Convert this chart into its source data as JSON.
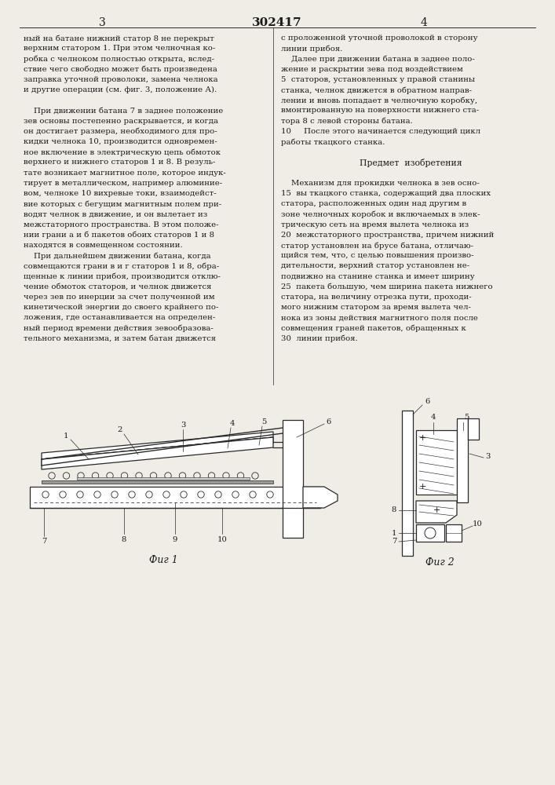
{
  "page_width": 7.07,
  "page_height": 10.0,
  "bg_color": "#f0ede6",
  "text_color": "#1a1a1a",
  "line_color": "#2a2a2a",
  "patent_number": "302417",
  "page_numbers": [
    "3",
    "4"
  ],
  "col1_text": [
    "ный на батане нижний статор 8 не перекрыт",
    "верхним статором 1. При этом челночная ко-",
    "робка с челноком полностью открыта, вслед-",
    "ствие чего свободно может быть произведена",
    "заправка уточной проволоки, замена челнока",
    "и другие операции (см. фиг. 3, положение А).",
    "",
    "    При движении батана 7 в заднее положение",
    "зев основы постепенно раскрывается, и когда",
    "он достигает размера, необходимого для про-",
    "кидки челнока 10, производится одновремен-",
    "ное включение в электрическую цепь обмоток",
    "верхнего и нижнего статоров 1 и 8. В резуль-",
    "тате возникает магнитное поле, которое индук-",
    "тирует в металлическом, например алюминие-",
    "вом, челноке 10 вихревые токи, взаимодейст-",
    "вие которых с бегущим магнитным полем при-",
    "водят челнок в движение, и он вылетает из",
    "межстаторного пространства. В этом положе-",
    "нии грани а и б пакетов обоих статоров 1 и 8",
    "находятся в совмещенном состоянии.",
    "    При дальнейшем движении батана, когда",
    "совмещаются грани в и г статоров 1 и 8, обра-",
    "щенные к линии прибоя, производится отклю-",
    "чение обмоток статоров, и челнок движется",
    "через зев по инерции за счет полученной им",
    "кинетической энергии до своего крайнего по-",
    "ложения, где останавливается на определен-",
    "ный период времени действия зевообразова-",
    "тельного механизма, и затем батан движется"
  ],
  "col2_text": [
    "с проложенной уточной проволокой в сторону",
    "линии прибоя.",
    "    Далее при движении батана в заднее поло-",
    "жение и раскрытии зева под воздействием",
    "5  статоров, установленных у правой станины",
    "станка, челнок движется в обратном направ-",
    "лении и вновь попадает в челночную коробку,",
    "вмонтированную на поверхности нижнего ста-",
    "тора 8 с левой стороны батана.",
    "10     После этого начинается следующий цикл",
    "работы ткацкого станка.",
    "",
    "         Предмет изобретения",
    "",
    "    Механизм для прокидки челнока в зев осно-",
    "15  вы ткацкого станка, содержащий два плоских",
    "статора, расположенных один над другим в",
    "зоне челночных коробок и включаемых в элек-",
    "трическую сеть на время вылета челнока из",
    "20  межстаторного пространства, причем нижний",
    "статор установлен на брусе батана, отличаю-",
    "щийся тем, что, с целью повышения произво-",
    "дительности, верхний статор установлен не-",
    "подвижно на станине станка и имеет ширину",
    "25  пакета большую, чем ширина пакета нижнего",
    "статора, на величину отрезка пути, проходи-",
    "мого нижним статором за время вылета чел-",
    "нока из зоны действия магнитного поля после",
    "совмещения граней пакетов, обращенных к",
    "30  линии прибоя."
  ],
  "fig1_caption": "Фиг 1",
  "fig2_caption": "Фиг 2"
}
